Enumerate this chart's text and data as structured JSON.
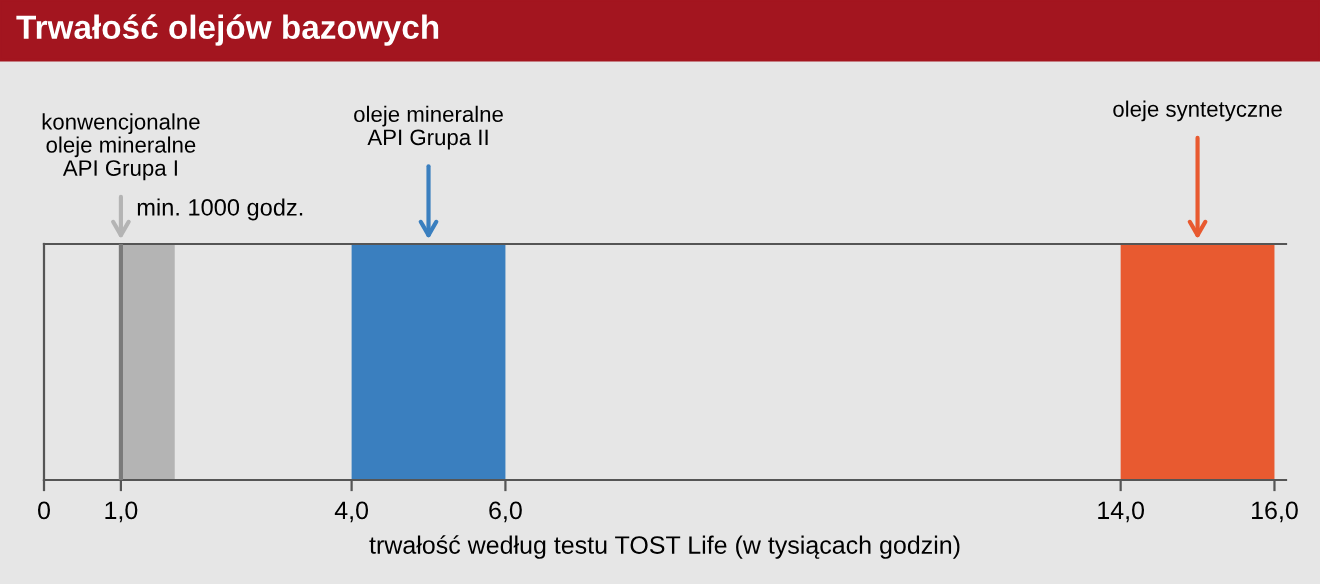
{
  "chart_data": {
    "type": "bar",
    "orientation": "horizontal",
    "title": "Trwałość olejów bazowych",
    "xlabel": "trwałość według testu TOST Life (w tysiącach godzin)",
    "categories": [
      null
    ],
    "series": [
      {
        "base": [
          1
        ],
        "values": [
          0.7
        ],
        "color": "#b4b4b4"
      },
      {
        "base": [
          4
        ],
        "values": [
          2
        ],
        "color": "#3a7fbf"
      },
      {
        "base": [
          14
        ],
        "values": [
          2
        ],
        "color": "#e85a30"
      }
    ],
    "xlim": [
      0,
      16.15
    ],
    "xticks": [
      0,
      {
        "value": 1,
        "label": "1,0"
      },
      {
        "value": 4,
        "label": "4,0"
      },
      {
        "value": 6,
        "label": "6,0"
      },
      {
        "value": 14,
        "label": "14,0"
      },
      {
        "value": 16,
        "label": "16,0"
      }
    ],
    "ref_lines": [
      {
        "axis": "x",
        "value": 1,
        "label": "min. 1000 godz.",
        "color": "#7a7a7a"
      }
    ],
    "annotations": [
      "konwencjonalne\noleje mineralne\nAPI Grupa I",
      "oleje mineralne\nAPI Grupa II",
      "oleje syntetyczne"
    ],
    "tick_labels": "x",
    "grid": false,
    "legend": false
  }
}
